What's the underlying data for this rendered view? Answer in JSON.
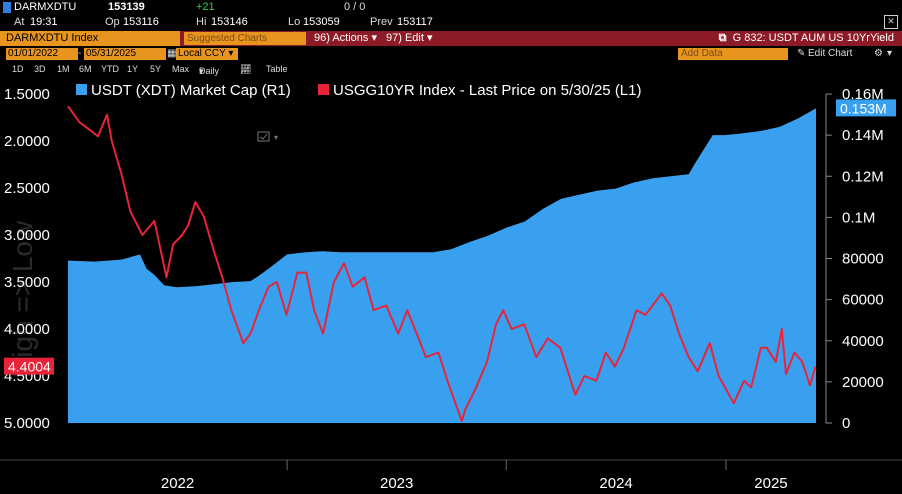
{
  "header": {
    "ticker": "DARMXDTU",
    "last": "153139",
    "change": "+21",
    "volume": "0 / 0",
    "at_label": "At",
    "at_value": "19:31",
    "op_label": "Op",
    "op_value": "153116",
    "hi_label": "Hi",
    "hi_value": "153146",
    "lo_label": "Lo",
    "lo_value": "153059",
    "prev_label": "Prev",
    "prev_value": "153117"
  },
  "toolbar": {
    "index_field": "DARMXDTU Index",
    "suggested": "Suggested Charts",
    "actions": "96) Actions",
    "edit": "97) Edit",
    "graph_title": "G 832: USDT AUM US 10YrYield",
    "start_date": "01/01/2022",
    "end_date": "05/31/2025",
    "currency": "Local CCY",
    "add_data": "Add Data",
    "edit_chart": "Edit Chart",
    "periods": [
      "1D",
      "3D",
      "1M",
      "6M",
      "YTD",
      "1Y",
      "5Y",
      "Max"
    ],
    "frequency": "Daily",
    "table": "Table"
  },
  "icons": {
    "close": "close-icon",
    "link": "external-link-icon",
    "chart_type": "line-chart-icon",
    "dropdown": "chevron-down-icon",
    "pencil": "pencil-icon",
    "settings": "gear-icon",
    "legend_toggle": "legend-toggle-icon"
  },
  "colors": {
    "background": "#000000",
    "area": "#39a0f0",
    "line": "#e8233a",
    "orange": "#e89520",
    "maroon": "#8c1b27",
    "ticker_green": "#27d14b"
  },
  "chart_data": {
    "type": "area",
    "watermark": "High => Low",
    "x_ticks": [
      "2022",
      "2023",
      "2024",
      "2025"
    ],
    "x_range": [
      "2022-01-01",
      "2025-05-31"
    ],
    "series": [
      {
        "name": "USDT (XDT) Market Cap (R1)",
        "axis": "right",
        "type": "area",
        "last_label": "0.153M",
        "points": [
          [
            "2022-01-01",
            79000
          ],
          [
            "2022-02-15",
            78500
          ],
          [
            "2022-04-01",
            79500
          ],
          [
            "2022-05-01",
            82000
          ],
          [
            "2022-05-12",
            75000
          ],
          [
            "2022-05-25",
            72000
          ],
          [
            "2022-06-10",
            67000
          ],
          [
            "2022-07-01",
            66000
          ],
          [
            "2022-08-01",
            66500
          ],
          [
            "2022-09-01",
            67500
          ],
          [
            "2022-10-01",
            68500
          ],
          [
            "2022-11-01",
            69000
          ],
          [
            "2022-11-12",
            71000
          ],
          [
            "2022-12-01",
            75000
          ],
          [
            "2023-01-01",
            82000
          ],
          [
            "2023-02-01",
            83000
          ],
          [
            "2023-03-01",
            83500
          ],
          [
            "2023-04-01",
            83000
          ],
          [
            "2023-05-01",
            83000
          ],
          [
            "2023-06-01",
            83000
          ],
          [
            "2023-07-01",
            83000
          ],
          [
            "2023-08-01",
            83000
          ],
          [
            "2023-09-01",
            83000
          ],
          [
            "2023-10-01",
            84500
          ],
          [
            "2023-11-01",
            88000
          ],
          [
            "2023-12-01",
            91000
          ],
          [
            "2024-01-01",
            95000
          ],
          [
            "2024-02-01",
            98000
          ],
          [
            "2024-03-01",
            104000
          ],
          [
            "2024-04-01",
            109000
          ],
          [
            "2024-05-01",
            111000
          ],
          [
            "2024-06-01",
            113000
          ],
          [
            "2024-07-01",
            114000
          ],
          [
            "2024-08-01",
            117000
          ],
          [
            "2024-09-01",
            119000
          ],
          [
            "2024-10-01",
            120000
          ],
          [
            "2024-10-31",
            121000
          ],
          [
            "2024-11-10",
            126000
          ],
          [
            "2024-11-25",
            133000
          ],
          [
            "2024-12-10",
            140000
          ],
          [
            "2024-12-31",
            140000
          ],
          [
            "2025-01-31",
            141000
          ],
          [
            "2025-02-28",
            142000
          ],
          [
            "2025-03-31",
            144000
          ],
          [
            "2025-04-30",
            148000
          ],
          [
            "2025-05-31",
            153000
          ]
        ]
      },
      {
        "name": "USGG10YR Index - Last Price on 5/30/25 (L1)",
        "axis": "left",
        "type": "line",
        "last_label": "4.4004",
        "points": [
          [
            "2022-01-01",
            1.63
          ],
          [
            "2022-01-20",
            1.8
          ],
          [
            "2022-02-10",
            1.9
          ],
          [
            "2022-02-20",
            1.95
          ],
          [
            "2022-03-07",
            1.72
          ],
          [
            "2022-03-15",
            2.0
          ],
          [
            "2022-03-31",
            2.35
          ],
          [
            "2022-04-15",
            2.75
          ],
          [
            "2022-05-05",
            3.0
          ],
          [
            "2022-05-25",
            2.85
          ],
          [
            "2022-06-14",
            3.45
          ],
          [
            "2022-06-25",
            3.1
          ],
          [
            "2022-07-10",
            3.0
          ],
          [
            "2022-07-20",
            2.9
          ],
          [
            "2022-08-01",
            2.65
          ],
          [
            "2022-08-15",
            2.8
          ],
          [
            "2022-08-31",
            3.15
          ],
          [
            "2022-09-15",
            3.45
          ],
          [
            "2022-09-30",
            3.8
          ],
          [
            "2022-10-20",
            4.15
          ],
          [
            "2022-11-01",
            4.05
          ],
          [
            "2022-11-15",
            3.8
          ],
          [
            "2022-12-01",
            3.55
          ],
          [
            "2022-12-15",
            3.5
          ],
          [
            "2022-12-31",
            3.85
          ],
          [
            "2023-01-18",
            3.4
          ],
          [
            "2023-02-02",
            3.4
          ],
          [
            "2023-02-15",
            3.8
          ],
          [
            "2023-03-02",
            4.05
          ],
          [
            "2023-03-20",
            3.5
          ],
          [
            "2023-04-06",
            3.3
          ],
          [
            "2023-04-20",
            3.55
          ],
          [
            "2023-05-10",
            3.45
          ],
          [
            "2023-05-25",
            3.8
          ],
          [
            "2023-06-15",
            3.75
          ],
          [
            "2023-07-05",
            4.05
          ],
          [
            "2023-07-20",
            3.8
          ],
          [
            "2023-08-05",
            4.05
          ],
          [
            "2023-08-20",
            4.3
          ],
          [
            "2023-09-10",
            4.25
          ],
          [
            "2023-09-25",
            4.55
          ],
          [
            "2023-10-19",
            4.98
          ],
          [
            "2023-10-25",
            4.85
          ],
          [
            "2023-11-10",
            4.65
          ],
          [
            "2023-11-30",
            4.35
          ],
          [
            "2023-12-15",
            3.95
          ],
          [
            "2023-12-27",
            3.8
          ],
          [
            "2024-01-10",
            4.0
          ],
          [
            "2024-01-31",
            3.95
          ],
          [
            "2024-02-20",
            4.3
          ],
          [
            "2024-03-10",
            4.1
          ],
          [
            "2024-03-31",
            4.2
          ],
          [
            "2024-04-25",
            4.7
          ],
          [
            "2024-05-10",
            4.5
          ],
          [
            "2024-05-30",
            4.55
          ],
          [
            "2024-06-15",
            4.25
          ],
          [
            "2024-06-30",
            4.4
          ],
          [
            "2024-07-15",
            4.2
          ],
          [
            "2024-08-05",
            3.8
          ],
          [
            "2024-08-20",
            3.85
          ],
          [
            "2024-09-16",
            3.62
          ],
          [
            "2024-09-30",
            3.75
          ],
          [
            "2024-10-15",
            4.05
          ],
          [
            "2024-10-31",
            4.3
          ],
          [
            "2024-11-15",
            4.45
          ],
          [
            "2024-12-05",
            4.15
          ],
          [
            "2024-12-20",
            4.5
          ],
          [
            "2025-01-14",
            4.79
          ],
          [
            "2025-01-31",
            4.55
          ],
          [
            "2025-02-12",
            4.62
          ],
          [
            "2025-02-28",
            4.2
          ],
          [
            "2025-03-10",
            4.2
          ],
          [
            "2025-03-25",
            4.35
          ],
          [
            "2025-04-04",
            4.0
          ],
          [
            "2025-04-11",
            4.48
          ],
          [
            "2025-04-25",
            4.25
          ],
          [
            "2025-05-08",
            4.35
          ],
          [
            "2025-05-21",
            4.6
          ],
          [
            "2025-05-30",
            4.4
          ]
        ]
      }
    ],
    "y_left": {
      "ticks": [
        "1.5000",
        "2.0000",
        "2.5000",
        "3.0000",
        "3.5000",
        "4.0000",
        "4.5000",
        "5.0000"
      ],
      "range": [
        1.5,
        5.0
      ],
      "inverted": true
    },
    "y_right": {
      "ticks": [
        "0.16M",
        "0.14M",
        "0.12M",
        "0.1M",
        "80000",
        "60000",
        "40000",
        "20000",
        "0"
      ],
      "range": [
        0,
        160000
      ]
    },
    "legend_position": "top-left",
    "grid": false
  }
}
